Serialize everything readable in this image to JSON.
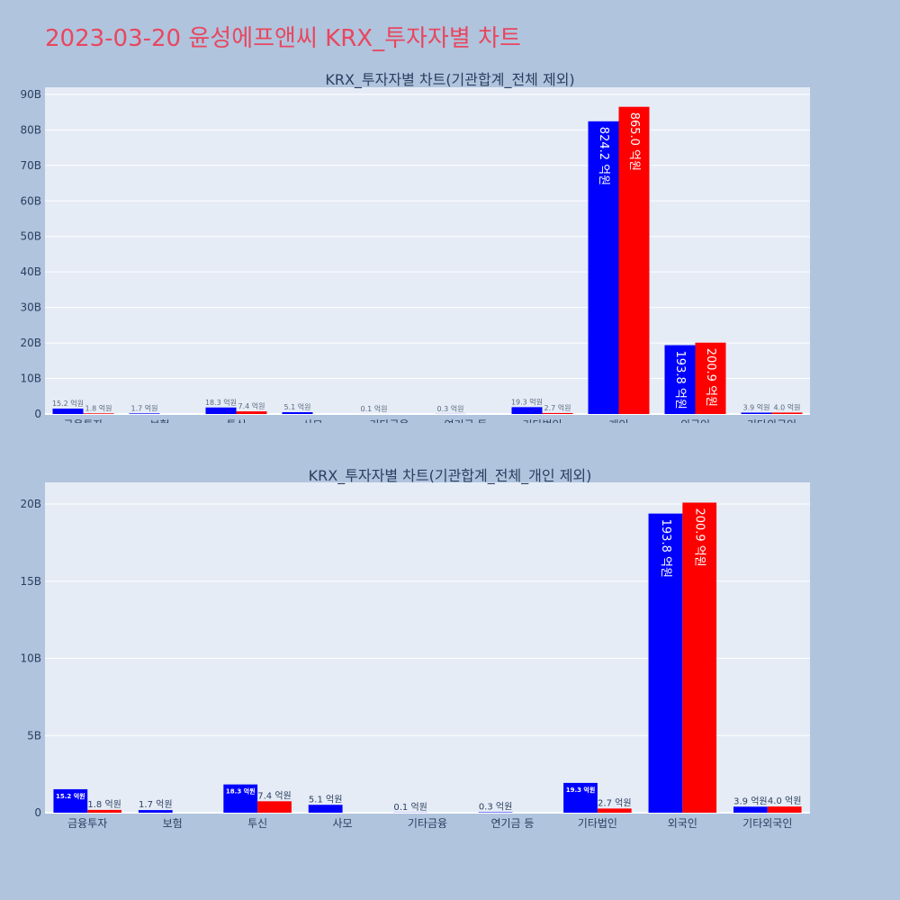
{
  "page": {
    "title": "2023-03-20 윤성에프앤씨 KRX_투자자별 차트"
  },
  "colors": {
    "buy": "#0000ff",
    "sell": "#ff0000",
    "background": "#b0c4de",
    "plot_bg": "#e5ecf6",
    "title": "#e8475f",
    "text": "#2a3f5f"
  },
  "chart_data": [
    {
      "type": "bar",
      "title": "KRX_투자자별 차트(기관합계_전체 제외)",
      "categories": [
        "금융투자",
        "보험",
        "투신",
        "사모",
        "기타금융",
        "연기금 등",
        "기타법인",
        "개인",
        "외국인",
        "기타외국인"
      ],
      "series": [
        {
          "values": [
            1520000000,
            170000000,
            1830000000,
            510000000,
            10000000,
            30000000,
            1930000000,
            82420000000,
            19380000000,
            390000000
          ],
          "labels": [
            "15.2 억원",
            "1.7 억원",
            "18.3 억원",
            "5.1 억원",
            "0.1 억원",
            "0.3 억원",
            "19.3 억원",
            "824.2 억원",
            "193.8 억원",
            "3.9 억원"
          ]
        },
        {
          "values": [
            180000000,
            0,
            740000000,
            0,
            0,
            0,
            270000000,
            86500000000,
            20090000000,
            400000000
          ],
          "labels": [
            "1.8 억원",
            "",
            "7.4 억원",
            "",
            "",
            "",
            "2.7 억원",
            "865.0 억원",
            "200.9 억원",
            "4.0 억원"
          ]
        }
      ],
      "ylim": [
        0,
        92000000000
      ],
      "yticks": [
        0,
        10000000000,
        20000000000,
        30000000000,
        40000000000,
        50000000000,
        60000000000,
        70000000000,
        80000000000,
        90000000000
      ],
      "ytick_labels": [
        "0",
        "10B",
        "20B",
        "30B",
        "40B",
        "50B",
        "60B",
        "70B",
        "80B",
        "90B"
      ],
      "grid": true
    },
    {
      "type": "bar",
      "title": "KRX_투자자별 차트(기관합계_전체_개인 제외)",
      "categories": [
        "금융투자",
        "보험",
        "투신",
        "사모",
        "기타금융",
        "연기금 등",
        "기타법인",
        "외국인",
        "기타외국인"
      ],
      "series": [
        {
          "values": [
            1520000000,
            170000000,
            1830000000,
            510000000,
            10000000,
            30000000,
            1930000000,
            19380000000,
            390000000
          ],
          "labels": [
            "15.2 억원",
            "1.7 억원",
            "18.3 억원",
            "5.1 억원",
            "0.1 억원",
            "0.3 억원",
            "19.3 억원",
            "193.8 억원",
            "3.9 억원"
          ]
        },
        {
          "values": [
            180000000,
            0,
            740000000,
            0,
            0,
            0,
            270000000,
            20090000000,
            400000000
          ],
          "labels": [
            "1.8 억원",
            "",
            "7.4 억원",
            "",
            "",
            "",
            "2.7 억원",
            "200.9 억원",
            "4.0 억원"
          ]
        }
      ],
      "ylim": [
        0,
        21400000000
      ],
      "yticks": [
        0,
        5000000000,
        10000000000,
        15000000000,
        20000000000
      ],
      "ytick_labels": [
        "0",
        "5B",
        "10B",
        "15B",
        "20B"
      ],
      "grid": true
    }
  ]
}
